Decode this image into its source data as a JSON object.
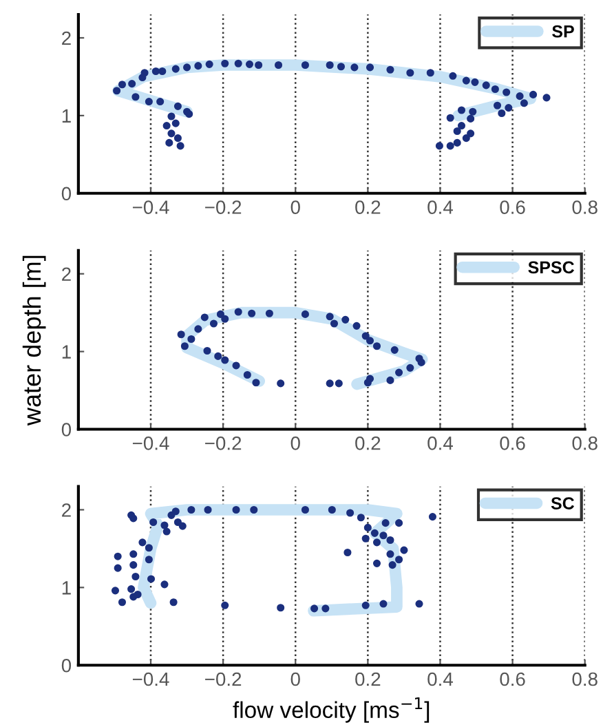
{
  "chart_data": [
    {
      "type": "scatter",
      "xlim": [
        -0.6,
        0.8
      ],
      "ylim": [
        0,
        2.3
      ],
      "xticks": [
        -0.4,
        -0.2,
        0,
        0.2,
        0.4,
        0.6,
        0.8
      ],
      "yticks": [
        0,
        1,
        2
      ],
      "grid": "x",
      "legend": "top right",
      "series": [
        {
          "type": "line",
          "name": "SP",
          "color": "#c6e2f5",
          "x": [
            -0.3,
            -0.42,
            -0.49,
            -0.42,
            -0.3,
            -0.2,
            0,
            0.2,
            0.4,
            0.55,
            0.65,
            0.55,
            0.45
          ],
          "values": [
            1.05,
            1.22,
            1.32,
            1.5,
            1.62,
            1.65,
            1.65,
            1.6,
            1.5,
            1.35,
            1.22,
            1.12,
            1.0
          ]
        },
        {
          "marker": "circle",
          "color": "#1b2f7e",
          "x": [
            -0.494,
            -0.479,
            -0.452,
            -0.423,
            -0.417,
            -0.386,
            -0.368,
            -0.331,
            -0.3,
            -0.269,
            -0.238,
            -0.195,
            -0.158,
            -0.127,
            -0.102,
            -0.047,
            0.027,
            0.095,
            0.126,
            0.163,
            0.206,
            0.262,
            0.317,
            0.373,
            0.435,
            0.472,
            0.496,
            0.527,
            0.552,
            0.583,
            0.62,
            0.657,
            0.694,
            0.632,
            0.589,
            0.57,
            0.558,
            0.49,
            0.459,
            0.428,
            0.484,
            0.459,
            0.447,
            0.484,
            0.472,
            0.447,
            0.428,
            0.398,
            -0.442,
            -0.405,
            -0.374,
            -0.325,
            -0.3,
            -0.294,
            -0.343,
            -0.356,
            -0.343,
            -0.325,
            -0.349,
            -0.318,
            -0.331
          ],
          "values": [
            1.32,
            1.4,
            1.41,
            1.49,
            1.55,
            1.57,
            1.57,
            1.6,
            1.62,
            1.64,
            1.66,
            1.67,
            1.67,
            1.66,
            1.65,
            1.65,
            1.65,
            1.65,
            1.63,
            1.62,
            1.62,
            1.59,
            1.55,
            1.55,
            1.51,
            1.45,
            1.43,
            1.39,
            1.34,
            1.3,
            1.25,
            1.27,
            1.23,
            1.16,
            1.1,
            1.03,
            1.13,
            1.05,
            1.07,
            0.97,
            0.96,
            0.87,
            0.8,
            0.77,
            0.71,
            0.65,
            0.61,
            0.61,
            1.24,
            1.18,
            1.18,
            1.12,
            1.05,
            1.02,
            0.99,
            0.87,
            0.77,
            0.71,
            0.65,
            0.61,
            0.9
          ]
        }
      ]
    },
    {
      "type": "scatter",
      "ylabel": "water depth [m]",
      "xlim": [
        -0.6,
        0.8
      ],
      "ylim": [
        0,
        2.3
      ],
      "xticks": [
        -0.4,
        -0.2,
        0,
        0.2,
        0.4,
        0.6,
        0.8
      ],
      "yticks": [
        0,
        1,
        2
      ],
      "grid": "x",
      "legend": "top right",
      "series": [
        {
          "type": "line",
          "name": "SPSC",
          "color": "#c6e2f5",
          "x": [
            -0.1,
            -0.2,
            -0.3,
            -0.3,
            -0.25,
            -0.15,
            0,
            0.1,
            0.2,
            0.3,
            0.35,
            0.3,
            0.2,
            0.17
          ],
          "values": [
            0.62,
            0.85,
            1.05,
            1.2,
            1.4,
            1.5,
            1.5,
            1.42,
            1.15,
            0.98,
            0.9,
            0.75,
            0.62,
            0.58
          ]
        },
        {
          "marker": "circle",
          "color": "#1b2f7e",
          "x": [
            -0.316,
            -0.306,
            -0.288,
            -0.269,
            -0.251,
            -0.226,
            -0.207,
            -0.195,
            -0.158,
            -0.121,
            -0.072,
            0.027,
            0.095,
            0.107,
            0.138,
            0.169,
            0.194,
            0.206,
            0.225,
            0.274,
            0.342,
            0.348,
            0.317,
            0.286,
            0.262,
            0.206,
            0.2,
            0.12,
            0.095,
            -0.041,
            -0.109,
            -0.133,
            -0.164,
            -0.195,
            -0.214,
            -0.244
          ],
          "values": [
            1.22,
            1.07,
            1.16,
            1.29,
            1.44,
            1.36,
            1.48,
            1.42,
            1.51,
            1.49,
            1.49,
            1.48,
            1.45,
            1.36,
            1.41,
            1.33,
            1.2,
            1.14,
            1.07,
            1.02,
            0.91,
            0.86,
            0.79,
            0.73,
            0.63,
            0.65,
            0.6,
            0.59,
            0.59,
            0.59,
            0.6,
            0.7,
            0.82,
            0.89,
            0.94,
            1.01
          ]
        }
      ]
    },
    {
      "type": "scatter",
      "xlabel": "flow velocity [ms$^{−1}$]",
      "xlim": [
        -0.6,
        0.8
      ],
      "ylim": [
        0,
        2.3
      ],
      "xticks": [
        -0.4,
        -0.2,
        0,
        0.2,
        0.4,
        0.6,
        0.8
      ],
      "yticks": [
        0,
        1,
        2
      ],
      "grid": "x",
      "legend": "top right",
      "series": [
        {
          "type": "line",
          "name": "SC",
          "color": "#c6e2f5",
          "x": [
            -0.4,
            -0.42,
            -0.4,
            -0.38,
            -0.4,
            -0.3,
            0,
            0.2,
            0.28,
            0.22,
            0.27,
            0.28,
            0.28,
            0.05
          ],
          "values": [
            0.8,
            1.0,
            1.5,
            1.8,
            1.95,
            2.0,
            2.0,
            2.0,
            1.95,
            1.7,
            1.5,
            1.0,
            0.75,
            0.7
          ]
        },
        {
          "marker": "circle",
          "color": "#1b2f7e",
          "x": [
            -0.454,
            -0.448,
            -0.491,
            -0.491,
            -0.498,
            -0.479,
            -0.448,
            -0.448,
            -0.442,
            -0.454,
            -0.448,
            -0.436,
            -0.423,
            -0.405,
            -0.405,
            -0.399,
            -0.362,
            -0.337,
            -0.393,
            -0.362,
            -0.356,
            -0.343,
            -0.325,
            -0.312,
            -0.331,
            -0.288,
            -0.242,
            -0.164,
            -0.115,
            0.027,
            0.101,
            0.151,
            0.181,
            0.2,
            0.219,
            0.194,
            0.225,
            0.243,
            0.262,
            0.249,
            0.286,
            0.3,
            0.286,
            0.262,
            0.268,
            0.225,
            0.144,
            0.379,
            0.342,
            0.243,
            0.194,
            0.083,
            0.052,
            -0.041,
            -0.195
          ],
          "values": [
            1.93,
            1.89,
            1.4,
            1.25,
            0.96,
            0.81,
            1.43,
            1.29,
            1.14,
            0.98,
            0.88,
            0.91,
            1.58,
            1.51,
            1.36,
            1.11,
            1.04,
            0.81,
            1.84,
            1.8,
            1.72,
            1.93,
            1.84,
            1.79,
            1.98,
            2.0,
            2.0,
            2.0,
            2.0,
            2.0,
            2.0,
            1.96,
            1.9,
            1.77,
            1.7,
            1.63,
            1.58,
            1.67,
            1.61,
            1.83,
            1.83,
            1.48,
            1.36,
            1.43,
            1.29,
            1.31,
            1.45,
            1.91,
            0.79,
            0.79,
            0.77,
            0.73,
            0.73,
            0.74,
            0.77
          ]
        }
      ]
    }
  ]
}
